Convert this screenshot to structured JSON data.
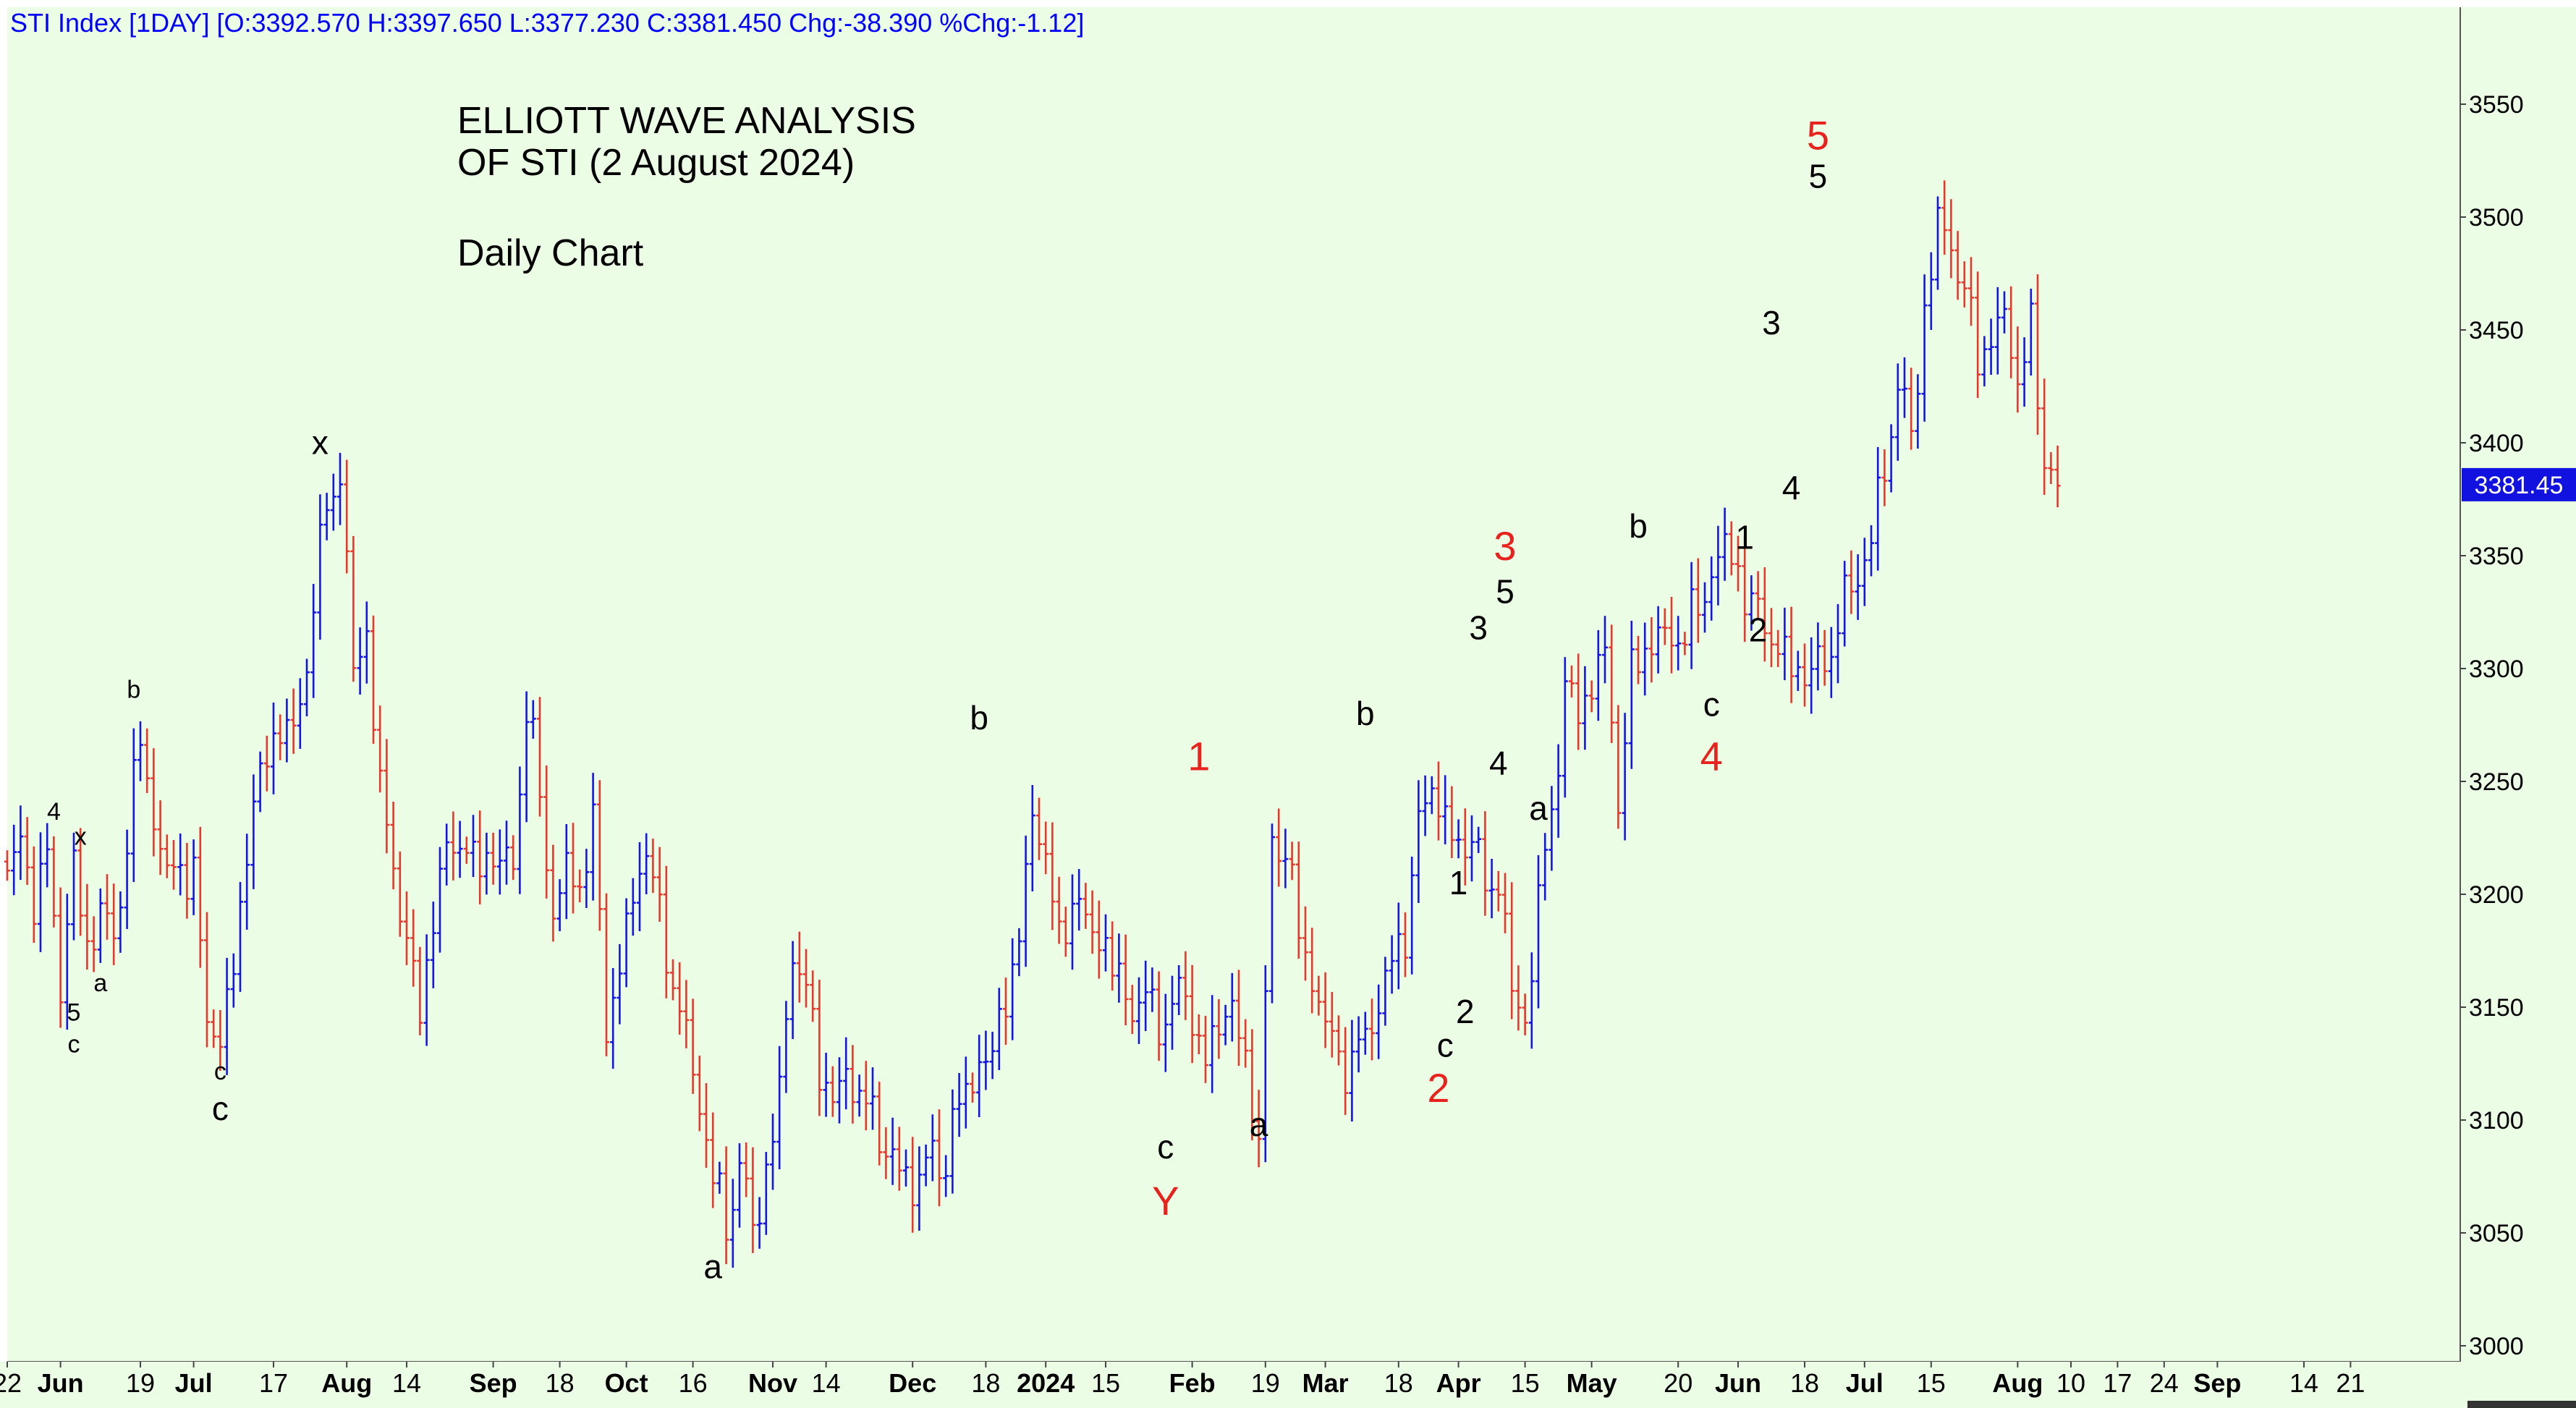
{
  "header": {
    "symbol_line": "STI Index [1DAY] [O:3392.570 H:3397.650 L:3377.230 C:3381.450 Chg:-38.390 %Chg:-1.12]"
  },
  "colors": {
    "plot_background": "#ecfde6",
    "up_bar": "#1414e6",
    "down_bar": "#e8372c",
    "wave_black": "#000000",
    "wave_red": "#e8231e",
    "last_price_bg": "#1212e0",
    "header_text": "#0000ff"
  },
  "chart_data": {
    "type": "ohlc",
    "title_lines": [
      "ELLIOTT WAVE ANALYSIS",
      "OF STI (2 August 2024)",
      "",
      "Daily Chart"
    ],
    "xlabel": "",
    "ylabel": "",
    "ylim": [
      3000,
      3580
    ],
    "grid": false,
    "last_price_label": "3381.45",
    "y_ticks": [
      3000,
      3050,
      3100,
      3150,
      3200,
      3250,
      3300,
      3350,
      3400,
      3450,
      3500,
      3550
    ],
    "x_tick_labels": [
      {
        "label": "22",
        "t": 0,
        "bold": false
      },
      {
        "label": "Jun",
        "t": 8,
        "bold": true
      },
      {
        "label": "19",
        "t": 20,
        "bold": false
      },
      {
        "label": "Jul",
        "t": 28,
        "bold": true
      },
      {
        "label": "17",
        "t": 40,
        "bold": false
      },
      {
        "label": "Aug",
        "t": 51,
        "bold": true
      },
      {
        "label": "14",
        "t": 60,
        "bold": false
      },
      {
        "label": "Sep",
        "t": 73,
        "bold": true
      },
      {
        "label": "18",
        "t": 83,
        "bold": false
      },
      {
        "label": "Oct",
        "t": 93,
        "bold": true
      },
      {
        "label": "16",
        "t": 103,
        "bold": false
      },
      {
        "label": "Nov",
        "t": 115,
        "bold": true
      },
      {
        "label": "14",
        "t": 123,
        "bold": false
      },
      {
        "label": "Dec",
        "t": 136,
        "bold": true
      },
      {
        "label": "18",
        "t": 147,
        "bold": false
      },
      {
        "label": "2024",
        "t": 156,
        "bold": true
      },
      {
        "label": "15",
        "t": 165,
        "bold": false
      },
      {
        "label": "Feb",
        "t": 178,
        "bold": true
      },
      {
        "label": "19",
        "t": 189,
        "bold": false
      },
      {
        "label": "Mar",
        "t": 198,
        "bold": true
      },
      {
        "label": "18",
        "t": 209,
        "bold": false
      },
      {
        "label": "Apr",
        "t": 218,
        "bold": true
      },
      {
        "label": "15",
        "t": 228,
        "bold": false
      },
      {
        "label": "May",
        "t": 238,
        "bold": true
      },
      {
        "label": "20",
        "t": 251,
        "bold": false
      },
      {
        "label": "Jun",
        "t": 260,
        "bold": true
      },
      {
        "label": "18",
        "t": 270,
        "bold": false
      },
      {
        "label": "Jul",
        "t": 279,
        "bold": true
      },
      {
        "label": "15",
        "t": 289,
        "bold": false
      },
      {
        "label": "Aug",
        "t": 302,
        "bold": true
      },
      {
        "label": "10",
        "t": 310,
        "bold": false
      },
      {
        "label": "17",
        "t": 317,
        "bold": false
      },
      {
        "label": "24",
        "t": 324,
        "bold": false
      },
      {
        "label": "Sep",
        "t": 332,
        "bold": true
      },
      {
        "label": "14",
        "t": 345,
        "bold": false
      },
      {
        "label": "21",
        "t": 352,
        "bold": false
      }
    ],
    "series": [
      {
        "path": [
          [
            0,
            3205
          ],
          [
            2,
            3225
          ],
          [
            4,
            3198
          ],
          [
            6,
            3215
          ],
          [
            8,
            3163
          ],
          [
            10,
            3210
          ],
          [
            12,
            3177
          ],
          [
            14,
            3193
          ],
          [
            16,
            3178
          ],
          [
            18,
            3225
          ],
          [
            20,
            3268
          ],
          [
            22,
            3235
          ],
          [
            24,
            3206
          ],
          [
            26,
            3215
          ],
          [
            28,
            3205
          ],
          [
            30,
            3147
          ],
          [
            32,
            3135
          ],
          [
            34,
            3165
          ],
          [
            36,
            3225
          ],
          [
            38,
            3248
          ],
          [
            40,
            3275
          ],
          [
            42,
            3268
          ],
          [
            44,
            3283
          ],
          [
            46,
            3328
          ],
          [
            48,
            3373
          ],
          [
            50,
            3388
          ],
          [
            52,
            3298
          ],
          [
            54,
            3318
          ],
          [
            56,
            3243
          ],
          [
            58,
            3216
          ],
          [
            60,
            3175
          ],
          [
            62,
            3150
          ],
          [
            64,
            3190
          ],
          [
            66,
            3218
          ],
          [
            68,
            3227
          ],
          [
            70,
            3210
          ],
          [
            72,
            3220
          ],
          [
            74,
            3212
          ],
          [
            76,
            3215
          ],
          [
            78,
            3282
          ],
          [
            80,
            3245
          ],
          [
            82,
            3190
          ],
          [
            84,
            3210
          ],
          [
            86,
            3205
          ],
          [
            88,
            3230
          ],
          [
            90,
            3145
          ],
          [
            92,
            3165
          ],
          [
            94,
            3200
          ],
          [
            96,
            3222
          ],
          [
            98,
            3188
          ],
          [
            100,
            3162
          ],
          [
            102,
            3135
          ],
          [
            104,
            3108
          ],
          [
            106,
            3075
          ],
          [
            108,
            3052
          ],
          [
            110,
            3082
          ],
          [
            112,
            3050
          ],
          [
            114,
            3078
          ],
          [
            116,
            3110
          ],
          [
            118,
            3178
          ],
          [
            120,
            3155
          ],
          [
            122,
            3125
          ],
          [
            124,
            3108
          ],
          [
            126,
            3118
          ],
          [
            128,
            3115
          ],
          [
            130,
            3098
          ],
          [
            132,
            3090
          ],
          [
            134,
            3076
          ],
          [
            136,
            3070
          ],
          [
            138,
            3085
          ],
          [
            140,
            3075
          ],
          [
            142,
            3100
          ],
          [
            144,
            3110
          ],
          [
            146,
            3128
          ],
          [
            148,
            3125
          ],
          [
            150,
            3160
          ],
          [
            152,
            3175
          ],
          [
            154,
            3240
          ],
          [
            156,
            3215
          ],
          [
            158,
            3178
          ],
          [
            160,
            3200
          ],
          [
            162,
            3185
          ],
          [
            164,
            3185
          ],
          [
            166,
            3165
          ],
          [
            168,
            3158
          ],
          [
            170,
            3147
          ],
          [
            172,
            3155
          ],
          [
            174,
            3138
          ],
          [
            176,
            3160
          ],
          [
            178,
            3148
          ],
          [
            180,
            3120
          ],
          [
            182,
            3150
          ],
          [
            184,
            3145
          ],
          [
            186,
            3128
          ],
          [
            188,
            3090
          ],
          [
            190,
            3218
          ],
          [
            192,
            3225
          ],
          [
            194,
            3180
          ],
          [
            196,
            3165
          ],
          [
            198,
            3140
          ],
          [
            200,
            3130
          ],
          [
            202,
            3122
          ],
          [
            204,
            3140
          ],
          [
            206,
            3150
          ],
          [
            208,
            3170
          ],
          [
            210,
            3185
          ],
          [
            212,
            3228
          ],
          [
            214,
            3252
          ],
          [
            216,
            3230
          ],
          [
            218,
            3220
          ],
          [
            220,
            3228
          ],
          [
            222,
            3200
          ],
          [
            224,
            3210
          ],
          [
            226,
            3155
          ],
          [
            228,
            3145
          ],
          [
            230,
            3195
          ],
          [
            232,
            3238
          ],
          [
            234,
            3290
          ],
          [
            236,
            3280
          ],
          [
            238,
            3295
          ],
          [
            240,
            3305
          ],
          [
            242,
            3245
          ],
          [
            244,
            3295
          ],
          [
            246,
            3310
          ],
          [
            248,
            3315
          ],
          [
            250,
            3310
          ],
          [
            252,
            3320
          ],
          [
            254,
            3323
          ],
          [
            256,
            3345
          ],
          [
            258,
            3352
          ],
          [
            260,
            3345
          ],
          [
            262,
            3325
          ],
          [
            264,
            3322
          ],
          [
            266,
            3308
          ],
          [
            268,
            3300
          ],
          [
            270,
            3300
          ],
          [
            272,
            3298
          ],
          [
            274,
            3310
          ],
          [
            276,
            3330
          ],
          [
            278,
            3340
          ],
          [
            280,
            3360
          ],
          [
            282,
            3385
          ],
          [
            284,
            3430
          ],
          [
            286,
            3400
          ],
          [
            288,
            3460
          ],
          [
            290,
            3495
          ],
          [
            292,
            3490
          ],
          [
            294,
            3465
          ],
          [
            296,
            3440
          ],
          [
            298,
            3445
          ],
          [
            300,
            3455
          ],
          [
            302,
            3430
          ],
          [
            304,
            3447
          ],
          [
            306,
            3395
          ],
          [
            308,
            3381
          ]
        ]
      }
    ],
    "wave_labels": [
      {
        "text": "4",
        "t": 7,
        "price": 3233,
        "color": "black",
        "size": "s"
      },
      {
        "text": "x",
        "t": 11,
        "price": 3222,
        "color": "black",
        "size": "s"
      },
      {
        "text": "5",
        "t": 10,
        "price": 3144,
        "color": "black",
        "size": "s"
      },
      {
        "text": "c",
        "t": 10,
        "price": 3130,
        "color": "black",
        "size": "s"
      },
      {
        "text": "a",
        "t": 14,
        "price": 3157,
        "color": "black",
        "size": "s"
      },
      {
        "text": "b",
        "t": 19,
        "price": 3287,
        "color": "black",
        "size": "s"
      },
      {
        "text": "c",
        "t": 32,
        "price": 3118,
        "color": "black",
        "size": "s"
      },
      {
        "text": "c",
        "t": 32,
        "price": 3100,
        "color": "black",
        "size": "m"
      },
      {
        "text": "x",
        "t": 47,
        "price": 3395,
        "color": "black",
        "size": "m"
      },
      {
        "text": "a",
        "t": 106,
        "price": 3030,
        "color": "black",
        "size": "m"
      },
      {
        "text": "b",
        "t": 146,
        "price": 3273,
        "color": "black",
        "size": "m"
      },
      {
        "text": "c",
        "t": 174,
        "price": 3083,
        "color": "black",
        "size": "m"
      },
      {
        "text": "Y",
        "t": 174,
        "price": 3058,
        "color": "red",
        "size": "l"
      },
      {
        "text": "1",
        "t": 179,
        "price": 3255,
        "color": "red",
        "size": "l"
      },
      {
        "text": "a",
        "t": 188,
        "price": 3093,
        "color": "black",
        "size": "m"
      },
      {
        "text": "b",
        "t": 204,
        "price": 3275,
        "color": "black",
        "size": "m"
      },
      {
        "text": "c",
        "t": 216,
        "price": 3128,
        "color": "black",
        "size": "m"
      },
      {
        "text": "2",
        "t": 215,
        "price": 3108,
        "color": "red",
        "size": "l"
      },
      {
        "text": "1",
        "t": 218,
        "price": 3200,
        "color": "black",
        "size": "m"
      },
      {
        "text": "2",
        "t": 219,
        "price": 3143,
        "color": "black",
        "size": "m"
      },
      {
        "text": "3",
        "t": 221,
        "price": 3313,
        "color": "black",
        "size": "m"
      },
      {
        "text": "4",
        "t": 224,
        "price": 3253,
        "color": "black",
        "size": "m"
      },
      {
        "text": "3",
        "t": 225,
        "price": 3348,
        "color": "red",
        "size": "l"
      },
      {
        "text": "5",
        "t": 225,
        "price": 3329,
        "color": "black",
        "size": "m"
      },
      {
        "text": "a",
        "t": 230,
        "price": 3233,
        "color": "black",
        "size": "m"
      },
      {
        "text": "b",
        "t": 245,
        "price": 3358,
        "color": "black",
        "size": "m"
      },
      {
        "text": "c",
        "t": 256,
        "price": 3279,
        "color": "black",
        "size": "m"
      },
      {
        "text": "4",
        "t": 256,
        "price": 3255,
        "color": "red",
        "size": "l"
      },
      {
        "text": "1",
        "t": 261,
        "price": 3353,
        "color": "black",
        "size": "m"
      },
      {
        "text": "2",
        "t": 263,
        "price": 3312,
        "color": "black",
        "size": "m"
      },
      {
        "text": "3",
        "t": 265,
        "price": 3448,
        "color": "black",
        "size": "m"
      },
      {
        "text": "4",
        "t": 268,
        "price": 3375,
        "color": "black",
        "size": "m"
      },
      {
        "text": "5",
        "t": 272,
        "price": 3513,
        "color": "black",
        "size": "m"
      },
      {
        "text": "5",
        "t": 272,
        "price": 3530,
        "color": "red",
        "size": "l"
      }
    ]
  }
}
